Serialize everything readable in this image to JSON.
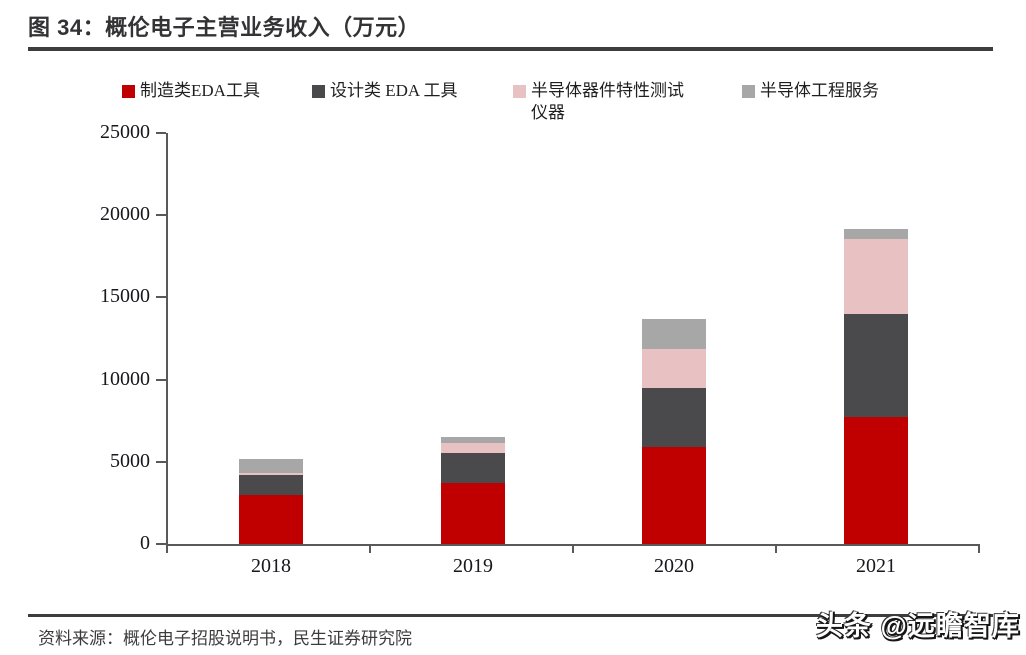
{
  "figure": {
    "title": "图 34：概伦电子主营业务收入（万元）",
    "source": "资料来源：概伦电子招股说明书，民生证券研究院",
    "watermark": "头条 @远瞻智库"
  },
  "chart_data": {
    "type": "bar",
    "stacked": true,
    "title": "概伦电子主营业务收入（万元）",
    "categories": [
      "2018",
      "2019",
      "2020",
      "2021"
    ],
    "series": [
      {
        "name": "制造类EDA工具",
        "color": "#c00000",
        "values": [
          2960,
          3690,
          5920,
          7700
        ]
      },
      {
        "name": "设计类 EDA 工具",
        "color": "#4a4a4d",
        "values": [
          1240,
          1830,
          3550,
          6270
        ]
      },
      {
        "name": "半导体器件特性测试仪器",
        "color": "#e8c2c2",
        "values": [
          140,
          640,
          2370,
          4560
        ]
      },
      {
        "name": "半导体工程服务",
        "color": "#a7a7a7",
        "values": [
          810,
          330,
          1820,
          630
        ]
      }
    ],
    "ylim": [
      0,
      25000
    ],
    "yticks": [
      0,
      5000,
      10000,
      15000,
      20000,
      25000
    ],
    "ylabel": "",
    "xlabel": "",
    "grid": false,
    "legend_position": "top"
  }
}
